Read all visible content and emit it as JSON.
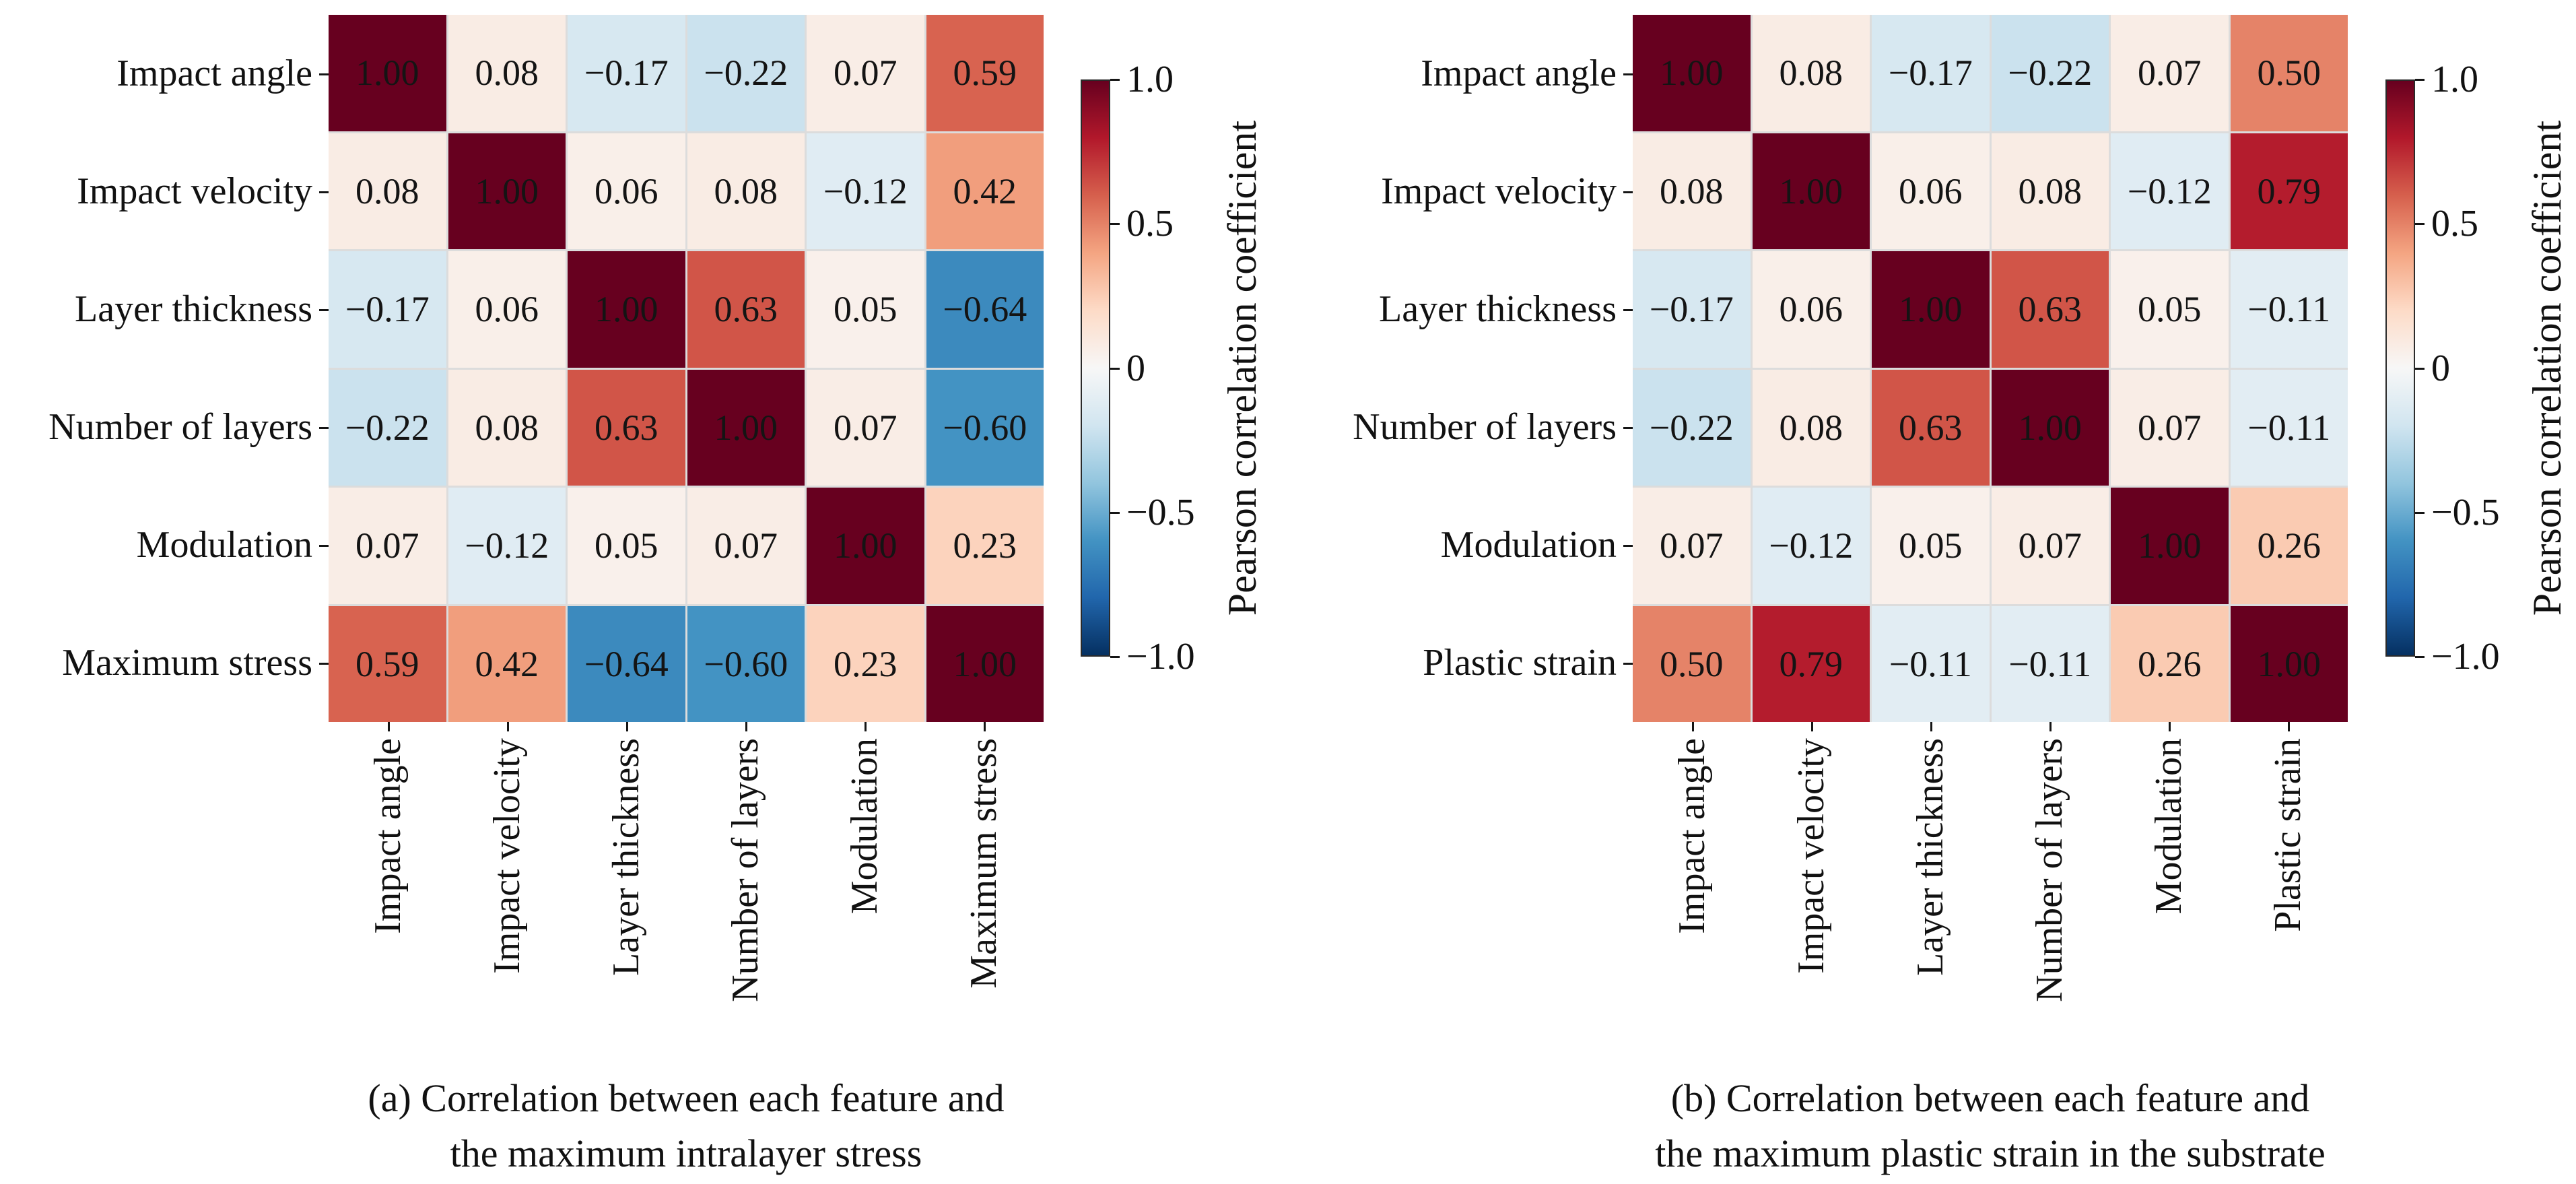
{
  "colors": {
    "background": "#ffffff",
    "cell_text": "#141414",
    "gridline": "#dcdcdc",
    "tick": "#151515",
    "cmap_rdbu_r": [
      "#053061",
      "#2166ac",
      "#4393c3",
      "#92c5de",
      "#d1e5f0",
      "#f7f7f7",
      "#fddbc7",
      "#f4a582",
      "#d6604d",
      "#b2182b",
      "#67001f"
    ]
  },
  "chart_data": [
    {
      "type": "heatmap",
      "panel": "(a)",
      "categories": [
        "Impact angle",
        "Impact velocity",
        "Layer thickness",
        "Number of layers",
        "Modulation",
        "Maximum stress"
      ],
      "matrix": [
        [
          1.0,
          0.08,
          -0.17,
          -0.22,
          0.07,
          0.59
        ],
        [
          0.08,
          1.0,
          0.06,
          0.08,
          -0.12,
          0.42
        ],
        [
          -0.17,
          0.06,
          1.0,
          0.63,
          0.05,
          -0.64
        ],
        [
          -0.22,
          0.08,
          0.63,
          1.0,
          0.07,
          -0.6
        ],
        [
          0.07,
          -0.12,
          0.05,
          0.07,
          1.0,
          0.23
        ],
        [
          0.59,
          0.42,
          -0.64,
          -0.6,
          0.23,
          1.0
        ]
      ],
      "value_range": [
        -1.0,
        1.0
      ],
      "colorbar_label": "Pearson correlation coefficient",
      "colorbar_ticks": [
        "1.0",
        "0.5",
        "0",
        "−0.5",
        "−1.0"
      ],
      "caption": [
        "(a) Correlation between each feature and",
        "the maximum intralayer stress"
      ]
    },
    {
      "type": "heatmap",
      "panel": "(b)",
      "categories": [
        "Impact angle",
        "Impact velocity",
        "Layer thickness",
        "Number of layers",
        "Modulation",
        "Plastic strain"
      ],
      "matrix": [
        [
          1.0,
          0.08,
          -0.17,
          -0.22,
          0.07,
          0.5
        ],
        [
          0.08,
          1.0,
          0.06,
          0.08,
          -0.12,
          0.79
        ],
        [
          -0.17,
          0.06,
          1.0,
          0.63,
          0.05,
          -0.11
        ],
        [
          -0.22,
          0.08,
          0.63,
          1.0,
          0.07,
          -0.11
        ],
        [
          0.07,
          -0.12,
          0.05,
          0.07,
          1.0,
          0.26
        ],
        [
          0.5,
          0.79,
          -0.11,
          -0.11,
          0.26,
          1.0
        ]
      ],
      "value_range": [
        -1.0,
        1.0
      ],
      "colorbar_label": "Pearson correlation coefficient",
      "colorbar_ticks": [
        "1.0",
        "0.5",
        "0",
        "−0.5",
        "−1.0"
      ],
      "caption": [
        "(b) Correlation between each feature and",
        "the maximum plastic strain in the substrate"
      ]
    }
  ]
}
